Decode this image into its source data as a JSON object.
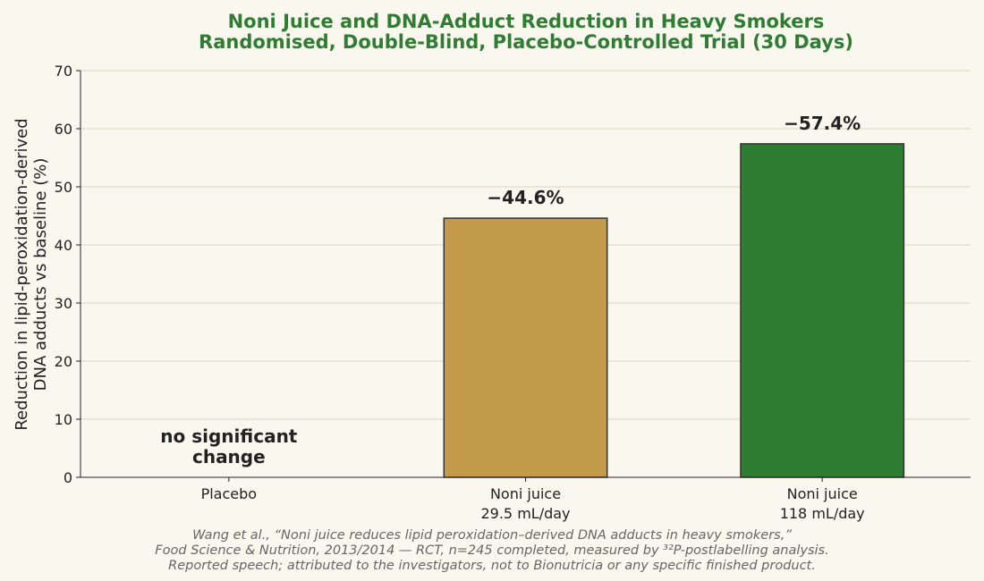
{
  "chart_data": {
    "type": "bar",
    "title": "Noni Juice and DNA-Adduct Reduction in Heavy Smokers",
    "subtitle": "Randomised, Double-Blind, Placebo-Controlled Trial (30 Days)",
    "ylabel": [
      "Reduction in lipid-peroxidation-derived",
      "DNA adducts vs baseline (%)"
    ],
    "xlabel": "",
    "ylim": [
      0,
      70
    ],
    "yticks": [
      0,
      10,
      20,
      30,
      40,
      50,
      60,
      70
    ],
    "grid": true,
    "categories": [
      [
        "Placebo"
      ],
      [
        "Noni juice",
        "29.5 mL/day"
      ],
      [
        "Noni juice",
        "118 mL/day"
      ]
    ],
    "values": [
      0,
      44.6,
      57.4
    ],
    "bar_colors": [
      "#faf7ef",
      "#c49b4b",
      "#2e7d32"
    ],
    "data_labels": [
      [
        "no significant",
        "change"
      ],
      [
        "−44.6%"
      ],
      [
        "−57.4%"
      ]
    ]
  },
  "footnote": [
    "Wang et al., “Noni juice reduces lipid peroxidation–derived DNA adducts in heavy smokers,”",
    "Food Science & Nutrition, 2013/2014 — RCT, n=245 completed, measured by ³²P-postlabelling analysis.",
    "Reported speech; attributed to the investigators, not to Bionutricia or any specific finished product."
  ],
  "colors": {
    "title": "#2e7d32",
    "grid": "#ddd6bd",
    "axis": "#222222",
    "footnote": "#666666",
    "bar_edge": "#333333"
  }
}
